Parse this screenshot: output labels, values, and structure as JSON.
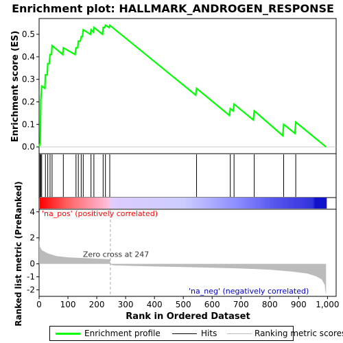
{
  "chart_data": {
    "type": "line",
    "title": "Enrichment plot: HALLMARK_ANDROGEN_RESPONSE",
    "es_panel": {
      "ylabel": "Enrichment score (ES)",
      "ylim": [
        -0.03,
        0.57
      ],
      "yticks": [
        "0.0",
        "0.1",
        "0.2",
        "0.3",
        "0.4",
        "0.5"
      ],
      "ytick_values": [
        0.0,
        0.1,
        0.2,
        0.3,
        0.4,
        0.5
      ],
      "line_color": "#00ff00",
      "series": {
        "name": "Enrichment profile",
        "points": [
          [
            0,
            0.0
          ],
          [
            4,
            0.02
          ],
          [
            6,
            0.21
          ],
          [
            9,
            0.27
          ],
          [
            20,
            0.26
          ],
          [
            22,
            0.32
          ],
          [
            28,
            0.32
          ],
          [
            30,
            0.37
          ],
          [
            35,
            0.37
          ],
          [
            38,
            0.41
          ],
          [
            43,
            0.41
          ],
          [
            45,
            0.45
          ],
          [
            82,
            0.41
          ],
          [
            84,
            0.44
          ],
          [
            125,
            0.41
          ],
          [
            128,
            0.44
          ],
          [
            134,
            0.44
          ],
          [
            136,
            0.47
          ],
          [
            143,
            0.47
          ],
          [
            146,
            0.49
          ],
          [
            150,
            0.49
          ],
          [
            153,
            0.52
          ],
          [
            178,
            0.5
          ],
          [
            180,
            0.52
          ],
          [
            188,
            0.51
          ],
          [
            190,
            0.53
          ],
          [
            220,
            0.5
          ],
          [
            222,
            0.53
          ],
          [
            228,
            0.53
          ],
          [
            230,
            0.54
          ],
          [
            243,
            0.53
          ],
          [
            245,
            0.54
          ],
          [
            543,
            0.23
          ],
          [
            546,
            0.26
          ],
          [
            660,
            0.14
          ],
          [
            663,
            0.17
          ],
          [
            673,
            0.16
          ],
          [
            676,
            0.19
          ],
          [
            743,
            0.12
          ],
          [
            746,
            0.16
          ],
          [
            845,
            0.05
          ],
          [
            848,
            0.1
          ],
          [
            887,
            0.06
          ],
          [
            890,
            0.11
          ],
          [
            995,
            0.0
          ]
        ]
      }
    },
    "hits": [
      3,
      6,
      9,
      22,
      30,
      38,
      45,
      84,
      128,
      136,
      146,
      153,
      180,
      190,
      222,
      230,
      245,
      546,
      663,
      676,
      746,
      848,
      890
    ],
    "ranked_panel": {
      "ylabel": "Ranked list metric (PreRanked)",
      "ylim": [
        -2.5,
        4.2
      ],
      "yticks": [
        "4",
        "2",
        "0",
        "-1",
        "-2"
      ],
      "ytick_values": [
        4,
        2,
        0,
        -1,
        -2
      ],
      "xlabel": "Rank in Ordered Dataset",
      "xlim": [
        0,
        1030
      ],
      "xticks": [
        "0",
        "100",
        "200",
        "300",
        "400",
        "500",
        "600",
        "700",
        "800",
        "900",
        "1,000"
      ],
      "xtick_values": [
        0,
        100,
        200,
        300,
        400,
        500,
        600,
        700,
        800,
        900,
        1000
      ],
      "n_genes": 995,
      "zero_cross": 247,
      "metric_profile": [
        [
          0,
          1.9
        ],
        [
          3,
          1.3
        ],
        [
          10,
          1.05
        ],
        [
          30,
          0.8
        ],
        [
          60,
          0.6
        ],
        [
          100,
          0.5
        ],
        [
          150,
          0.45
        ],
        [
          200,
          0.4
        ],
        [
          246,
          0.35
        ],
        [
          247,
          -0.05
        ],
        [
          260,
          -0.12
        ],
        [
          400,
          -0.2
        ],
        [
          500,
          -0.24
        ],
        [
          600,
          -0.3
        ],
        [
          700,
          -0.36
        ],
        [
          800,
          -0.45
        ],
        [
          880,
          -0.6
        ],
        [
          930,
          -0.75
        ],
        [
          960,
          -0.95
        ],
        [
          980,
          -1.2
        ],
        [
          990,
          -1.6
        ],
        [
          994,
          -2.3
        ],
        [
          995,
          -2.35
        ]
      ]
    },
    "annotations": {
      "pos_label": "'na_pos' (positively correlated)",
      "neg_label": "'na_neg' (negatively correlated)",
      "zero_cross_label": "Zero cross at 247"
    },
    "legend": {
      "items": [
        "Enrichment profile",
        "Hits",
        "Ranking metric scores"
      ],
      "placement": "bottom"
    },
    "colors": {
      "pos_text": "#ff0000",
      "neg_text": "#0000cc",
      "metric_fill": "#bbbbbb",
      "hit_line": "#000000"
    }
  }
}
